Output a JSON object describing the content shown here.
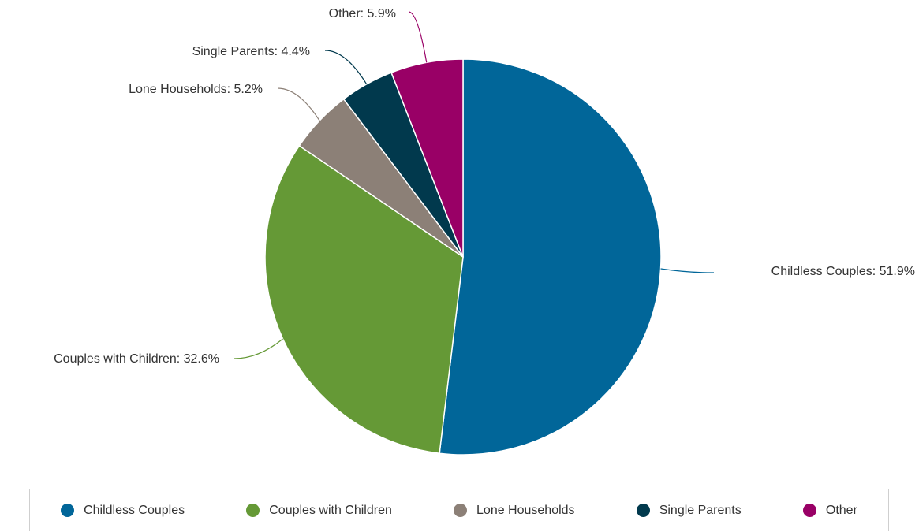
{
  "chart_data": {
    "type": "pie",
    "series": [
      {
        "name": "Childless Couples",
        "value": 51.9,
        "label": "Childless Couples: 51.9%",
        "color": "#016699"
      },
      {
        "name": "Couples with Children",
        "value": 32.6,
        "label": "Couples with Children: 32.6%",
        "color": "#659936"
      },
      {
        "name": "Lone Households",
        "value": 5.2,
        "label": "Lone Households: 5.2%",
        "color": "#8c8077"
      },
      {
        "name": "Single Parents",
        "value": 4.4,
        "label": "Single Parents: 4.4%",
        "color": "#01394d"
      },
      {
        "name": "Other",
        "value": 5.9,
        "label": "Other: 5.9%",
        "color": "#990066"
      }
    ],
    "legend_position": "bottom"
  },
  "legend": {
    "items": [
      {
        "label": "Childless Couples",
        "color": "#016699"
      },
      {
        "label": "Couples with Children",
        "color": "#659936"
      },
      {
        "label": "Lone Households",
        "color": "#8c8077"
      },
      {
        "label": "Single Parents",
        "color": "#01394d"
      },
      {
        "label": "Other",
        "color": "#990066"
      }
    ]
  }
}
